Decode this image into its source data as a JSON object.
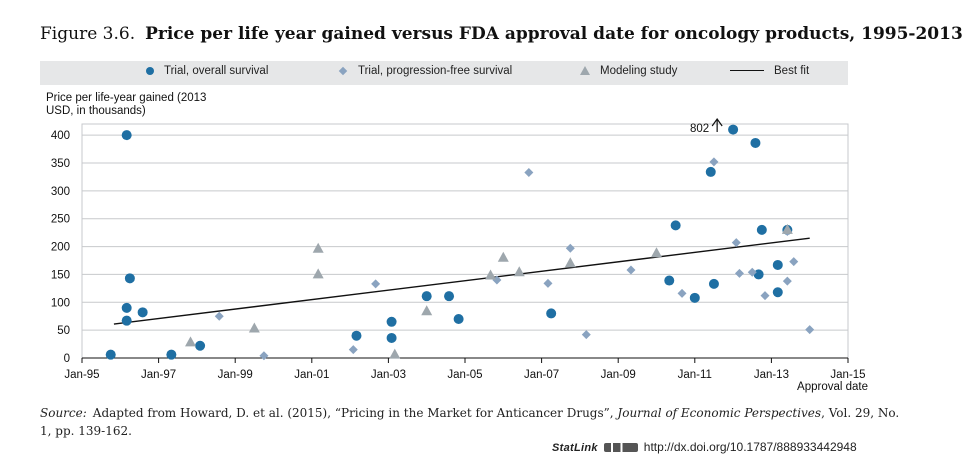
{
  "figure": {
    "number": "Figure 3.6.",
    "title": "Price per life year gained versus FDA approval date for oncology products, 1995-2013"
  },
  "legend": {
    "overall": "Trial, overall survival",
    "pfs": "Trial, progression-free survival",
    "modeling": "Modeling study",
    "bestfit": "Best fit"
  },
  "colors": {
    "overall": "#1f6fa3",
    "pfs": "#8aa3c0",
    "modeling": "#9ea7ad",
    "bestfit": "#111111",
    "legend_bg": "#e6e7e8"
  },
  "chart_data": {
    "type": "scatter",
    "title": "Price per life year gained versus FDA approval date for oncology products, 1995-2013",
    "ylabel": "Price per life-year gained (2013 USD, in thousands)",
    "xlabel": "Approval date",
    "ylim": [
      0,
      420
    ],
    "xlim": [
      "1995-01",
      "2015-01"
    ],
    "yticks": [
      0,
      50,
      100,
      150,
      200,
      250,
      300,
      350,
      400
    ],
    "xticks": [
      "Jan-95",
      "Jan-97",
      "Jan-99",
      "Jan-01",
      "Jan-03",
      "Jan-05",
      "Jan-07",
      "Jan-09",
      "Jan-11",
      "Jan-13",
      "Jan-15"
    ],
    "grid": "horizontal",
    "legend_position": "top",
    "annotation": {
      "text": "802",
      "x": "2011-08",
      "y": 802,
      "note_arrow": "up"
    },
    "series": [
      {
        "name": "Trial, overall survival",
        "marker": "circle",
        "points": [
          [
            "1995-10",
            6
          ],
          [
            "1996-03",
            400
          ],
          [
            "1996-04",
            143
          ],
          [
            "1996-03",
            90
          ],
          [
            "1996-03",
            67
          ],
          [
            "1996-08",
            82
          ],
          [
            "1997-05",
            6
          ],
          [
            "1998-02",
            22
          ],
          [
            "2002-03",
            40
          ],
          [
            "2003-02",
            65
          ],
          [
            "2003-02",
            36
          ],
          [
            "2004-01",
            111
          ],
          [
            "2004-08",
            111
          ],
          [
            "2004-11",
            70
          ],
          [
            "2007-04",
            80
          ],
          [
            "2010-05",
            139
          ],
          [
            "2010-07",
            238
          ],
          [
            "2011-01",
            108
          ],
          [
            "2011-06",
            334
          ],
          [
            "2011-07",
            133
          ],
          [
            "2012-01",
            410
          ],
          [
            "2012-08",
            386
          ],
          [
            "2012-09",
            150
          ],
          [
            "2012-10",
            230
          ],
          [
            "2013-03",
            167
          ],
          [
            "2013-03",
            118
          ],
          [
            "2013-06",
            230
          ]
        ]
      },
      {
        "name": "Trial, progression-free survival",
        "marker": "diamond",
        "points": [
          [
            "1998-08",
            75
          ],
          [
            "1999-10",
            4
          ],
          [
            "2002-02",
            15
          ],
          [
            "2002-09",
            133
          ],
          [
            "2005-11",
            140
          ],
          [
            "2006-09",
            333
          ],
          [
            "2007-03",
            134
          ],
          [
            "2007-10",
            197
          ],
          [
            "2008-03",
            42
          ],
          [
            "2009-05",
            158
          ],
          [
            "2010-09",
            116
          ],
          [
            "2011-07",
            352
          ],
          [
            "2012-02",
            207
          ],
          [
            "2012-03",
            152
          ],
          [
            "2012-07",
            154
          ],
          [
            "2012-11",
            112
          ],
          [
            "2013-06",
            138
          ],
          [
            "2013-08",
            173
          ],
          [
            "2013-06",
            227
          ],
          [
            "2014-01",
            51
          ]
        ]
      },
      {
        "name": "Modeling study",
        "marker": "triangle",
        "points": [
          [
            "1997-11",
            28
          ],
          [
            "1999-07",
            53
          ],
          [
            "2001-03",
            196
          ],
          [
            "2001-03",
            150
          ],
          [
            "2003-03",
            6
          ],
          [
            "2004-01",
            84
          ],
          [
            "2005-09",
            148
          ],
          [
            "2006-01",
            180
          ],
          [
            "2006-06",
            154
          ],
          [
            "2007-10",
            170
          ],
          [
            "2010-01",
            188
          ],
          [
            "2013-06",
            230
          ]
        ]
      },
      {
        "name": "Best fit",
        "marker": "line",
        "points": [
          [
            "1995-11",
            61
          ],
          [
            "2014-01",
            215
          ]
        ]
      }
    ]
  },
  "source": {
    "label": "Source:",
    "text": "Adapted from Howard, D. et al. (2015), “Pricing in the Market for Anticancer Drugs”, ",
    "journal": "Journal of Economic Perspectives",
    "tail": ", Vol. 29, No. 1, pp. 139-162."
  },
  "statlink": {
    "label": "StatLink",
    "url": "http://dx.doi.org/10.1787/888933442948"
  }
}
